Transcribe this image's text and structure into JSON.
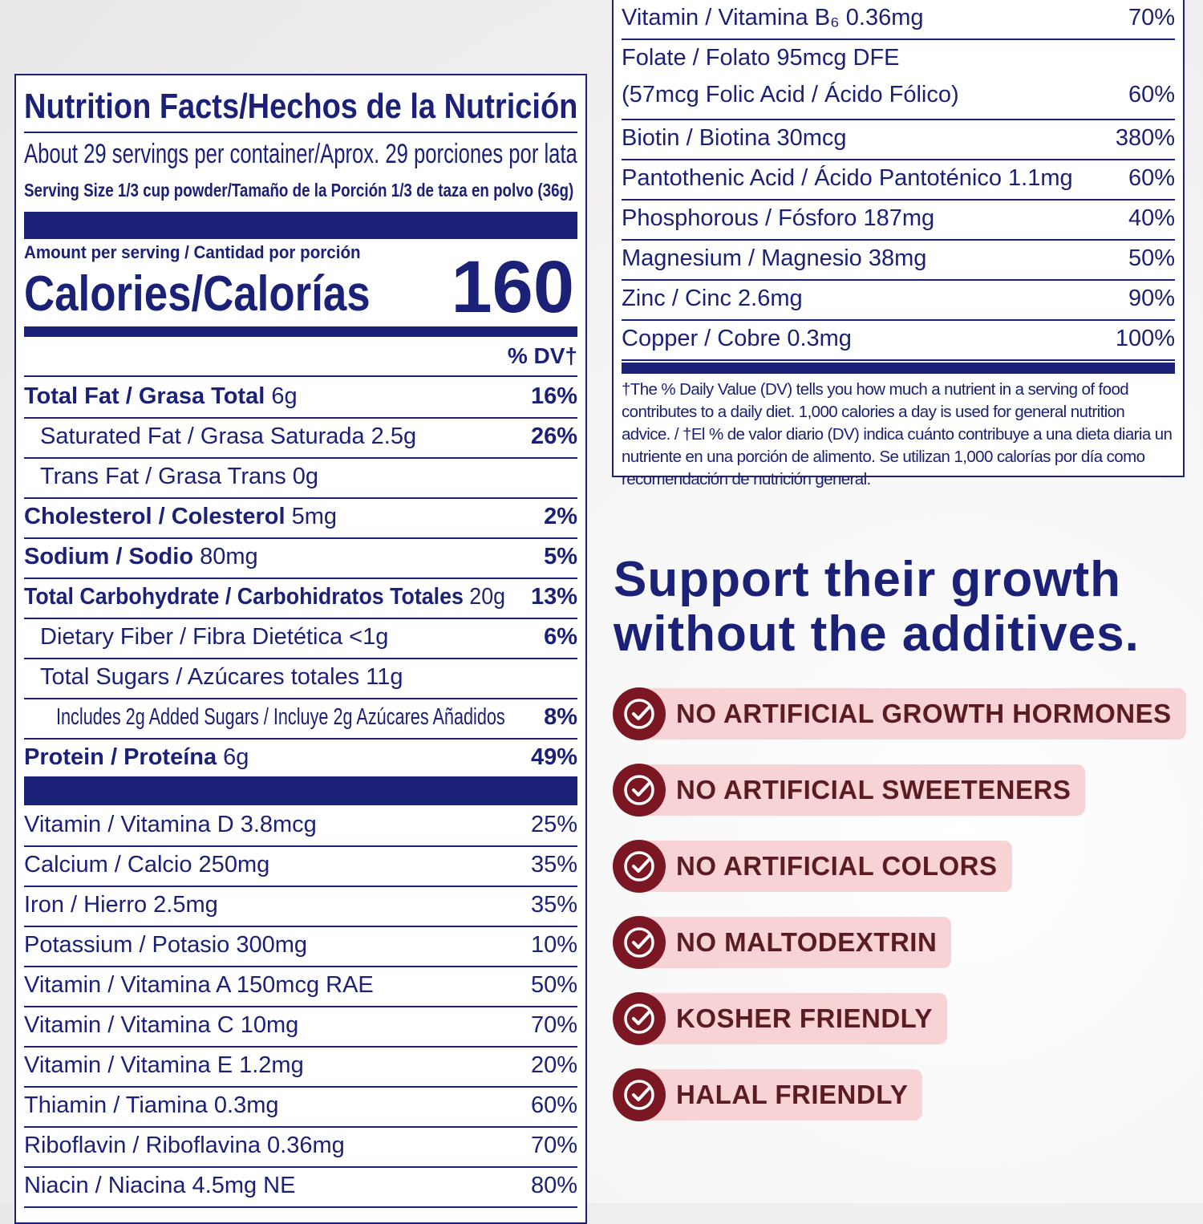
{
  "label": {
    "title": "Nutrition Facts/Hechos de la Nutrición",
    "servings": "About 29 servings per container/Aprox. 29 porciones por lata",
    "serving_size": "Serving Size 1/3 cup powder/Tamaño de la Porción 1/3 de taza en polvo (36g)",
    "amount_per_serving": "Amount per serving / Cantidad por porción",
    "calories_label": "Calories/Calorías",
    "calories": "160",
    "dv_header": "% DV†",
    "nutrients": [
      {
        "name": "Total Fat / Grasa Total",
        "amount": "6g",
        "dv": "16%",
        "sub": [
          {
            "name": "Saturated Fat / Grasa Saturada 2.5g",
            "dv": "26%"
          },
          {
            "name": "Trans Fat / Grasa Trans 0g"
          }
        ]
      },
      {
        "name": "Cholesterol / Colesterol",
        "amount": "5mg",
        "dv": "2%"
      },
      {
        "name": "Sodium / Sodio",
        "amount": "80mg",
        "dv": "5%"
      },
      {
        "name": "Total Carbohydrate / Carbohidratos Totales",
        "amount": "20g",
        "dv": "13%",
        "sub": [
          {
            "name": "Dietary Fiber / Fibra Dietética <1g",
            "dv": "6%"
          },
          {
            "name": "Total Sugars / Azúcares totales 11g",
            "sub": [
              {
                "name": "Includes 2g Added Sugars / Incluye 2g Azúcares Añadidos",
                "dv": "8%"
              }
            ]
          }
        ]
      },
      {
        "name": "Protein / Proteína",
        "amount": "6g",
        "dv": "49%"
      }
    ],
    "vitamins": [
      {
        "name": "Vitamin / Vitamina D 3.8mcg",
        "dv": "25%"
      },
      {
        "name": "Calcium / Calcio 250mg",
        "dv": "35%"
      },
      {
        "name": "Iron / Hierro 2.5mg",
        "dv": "35%"
      },
      {
        "name": "Potassium / Potasio 300mg",
        "dv": "10%"
      },
      {
        "name": "Vitamin / Vitamina A 150mcg RAE",
        "dv": "50%"
      },
      {
        "name": "Vitamin / Vitamina C 10mg",
        "dv": "70%"
      },
      {
        "name": "Vitamin / Vitamina E 1.2mg",
        "dv": "20%"
      },
      {
        "name": "Thiamin / Tiamina 0.3mg",
        "dv": "60%"
      },
      {
        "name": "Riboflavin / Riboflavina 0.36mg",
        "dv": "70%"
      },
      {
        "name": "Niacin / Niacina 4.5mg NE",
        "dv": "80%"
      }
    ],
    "vitamins_continued": [
      {
        "name": "Vitamin / Vitamina B₆ 0.36mg",
        "dv": "70%"
      },
      {
        "name": "Folate / Folato 95mcg DFE",
        "name2": "(57mcg Folic Acid / Ácido Fólico)",
        "dv": "60%"
      },
      {
        "name": "Biotin / Biotina 30mcg",
        "dv": "380%"
      },
      {
        "name": "Pantothenic Acid / Ácido Pantoténico 1.1mg",
        "dv": "60%"
      },
      {
        "name": "Phosphorous / Fósforo 187mg",
        "dv": "40%"
      },
      {
        "name": "Magnesium / Magnesio 38mg",
        "dv": "50%"
      },
      {
        "name": "Zinc / Cinc 2.6mg",
        "dv": "90%"
      },
      {
        "name": "Copper / Cobre 0.3mg",
        "dv": "100%"
      }
    ],
    "footnote": "†The % Daily Value (DV) tells you how much a nutrient in a serving of food contributes to a daily diet. 1,000 calories a day is used for general nutrition advice. / †El % de valor diario (DV) indica cuánto contribuye a una dieta diaria un nutriente en una porción de alimento. Se utilizan 1,000 calorías por día como recomendación de nutrición general."
  },
  "promo": {
    "headline": [
      "Support their growth",
      "without the additives."
    ],
    "badges": [
      "NO ARTIFICIAL GROWTH HORMONES",
      "NO ARTIFICIAL SWEETENERS",
      "NO ARTIFICIAL COLORS",
      "NO MALTODEXTRIN",
      "KOSHER FRIENDLY",
      "HALAL FRIENDLY"
    ]
  }
}
